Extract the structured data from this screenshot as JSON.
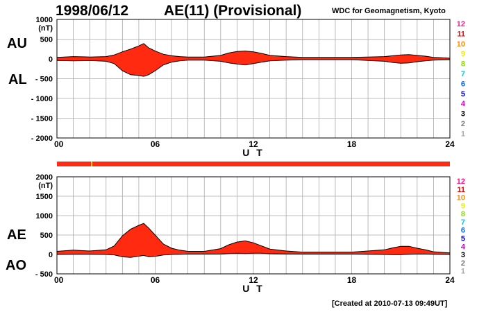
{
  "header": {
    "date": "1998/06/12",
    "index_title": "AE(11) (Provisional)",
    "source": "WDC for Geomagnetism, Kyoto"
  },
  "footer": {
    "created": "[Created at 2010-07-13 09:49UT]"
  },
  "colors": {
    "fill": "#ff2a10",
    "station_bar": "#ff2a10",
    "station_marker": "#ffcc00",
    "grid": "#aaaaaa"
  },
  "chart_data": [
    {
      "type": "area",
      "id": "au-al",
      "left_labels": [
        "AU",
        "AL"
      ],
      "ylabel": "(nT)",
      "ylim": [
        -2000,
        1000
      ],
      "y_ticks": [
        1000,
        500,
        0,
        -500,
        -1000,
        -1500,
        -2000
      ],
      "y_tick_labels": [
        "1000",
        "500",
        "0",
        "- 500",
        "- 1000",
        "- 1500",
        "- 2000"
      ],
      "xlabel": "U T",
      "xlim": [
        0,
        24
      ],
      "x_ticks": [
        0,
        6,
        12,
        18,
        24
      ],
      "x_tick_labels": [
        "00",
        "06",
        "12",
        "18",
        "24"
      ],
      "grid": true,
      "station_counts": [
        "12",
        "11",
        "10",
        "9",
        "8",
        "7",
        "6",
        "5",
        "4",
        "3",
        "2",
        "1"
      ],
      "series": [
        {
          "name": "AU",
          "x": [
            0,
            1,
            2,
            3,
            3.5,
            4,
            4.5,
            5,
            5.3,
            5.6,
            6,
            6.5,
            7,
            7.5,
            8,
            9,
            10,
            10.5,
            11,
            11.5,
            12,
            12.5,
            13,
            14,
            15,
            16,
            17,
            18,
            19,
            20,
            20.5,
            21,
            21.5,
            22,
            22.5,
            23,
            24
          ],
          "values": [
            40,
            60,
            50,
            60,
            100,
            180,
            250,
            330,
            390,
            280,
            200,
            120,
            80,
            60,
            50,
            50,
            90,
            150,
            190,
            200,
            180,
            140,
            90,
            60,
            40,
            40,
            40,
            40,
            50,
            60,
            80,
            100,
            110,
            90,
            70,
            40,
            20
          ]
        },
        {
          "name": "AL",
          "x": [
            0,
            1,
            2,
            3,
            3.5,
            4,
            4.5,
            5,
            5.3,
            5.6,
            6,
            6.5,
            7,
            7.5,
            8,
            9,
            10,
            10.5,
            11,
            11.5,
            12,
            12.5,
            13,
            14,
            15,
            16,
            17,
            18,
            19,
            20,
            20.5,
            21,
            21.5,
            22,
            22.5,
            23,
            24
          ],
          "values": [
            -40,
            -50,
            -40,
            -60,
            -120,
            -300,
            -400,
            -420,
            -440,
            -400,
            -300,
            -150,
            -80,
            -50,
            -30,
            -30,
            -60,
            -100,
            -130,
            -150,
            -120,
            -80,
            -50,
            -30,
            -20,
            -20,
            -20,
            -20,
            -40,
            -60,
            -90,
            -110,
            -100,
            -70,
            -50,
            -30,
            -20
          ]
        }
      ]
    },
    {
      "type": "area",
      "id": "ae-ao",
      "left_labels": [
        "AE",
        "AO"
      ],
      "ylabel": "(nT)",
      "ylim": [
        -500,
        2000
      ],
      "y_ticks": [
        2000,
        1500,
        1000,
        500,
        0,
        -500
      ],
      "y_tick_labels": [
        "2000",
        "1500",
        "1000",
        "500",
        "0",
        "- 500"
      ],
      "xlabel": "U T",
      "xlim": [
        0,
        24
      ],
      "x_ticks": [
        0,
        6,
        12,
        18,
        24
      ],
      "x_tick_labels": [
        "00",
        "06",
        "12",
        "18",
        "24"
      ],
      "grid": true,
      "station_counts": [
        "12",
        "11",
        "10",
        "9",
        "8",
        "7",
        "6",
        "5",
        "4",
        "3",
        "2",
        "1"
      ],
      "series": [
        {
          "name": "AE",
          "x": [
            0,
            1,
            2,
            3,
            3.5,
            4,
            4.5,
            5,
            5.3,
            5.6,
            6,
            6.5,
            7,
            7.5,
            8,
            9,
            10,
            10.5,
            11,
            11.5,
            12,
            12.5,
            13,
            14,
            15,
            16,
            17,
            18,
            19,
            20,
            20.5,
            21,
            21.5,
            22,
            22.5,
            23,
            24
          ],
          "values": [
            80,
            110,
            90,
            120,
            220,
            480,
            650,
            750,
            800,
            680,
            500,
            270,
            160,
            110,
            80,
            80,
            150,
            250,
            320,
            350,
            300,
            220,
            140,
            90,
            60,
            60,
            60,
            60,
            90,
            120,
            170,
            210,
            210,
            160,
            120,
            70,
            40
          ]
        },
        {
          "name": "AO",
          "x": [
            0,
            1,
            2,
            3,
            3.5,
            4,
            4.5,
            5,
            5.3,
            5.6,
            6,
            6.5,
            7,
            7.5,
            8,
            9,
            10,
            10.5,
            11,
            11.5,
            12,
            12.5,
            13,
            14,
            15,
            16,
            17,
            18,
            19,
            20,
            20.5,
            21,
            21.5,
            22,
            22.5,
            23,
            24
          ],
          "values": [
            0,
            5,
            5,
            0,
            -10,
            -60,
            -75,
            -45,
            -25,
            -60,
            -50,
            -15,
            0,
            5,
            10,
            10,
            15,
            25,
            30,
            25,
            30,
            30,
            20,
            15,
            10,
            10,
            10,
            10,
            5,
            0,
            -5,
            -5,
            5,
            10,
            10,
            5,
            0
          ]
        }
      ]
    }
  ]
}
